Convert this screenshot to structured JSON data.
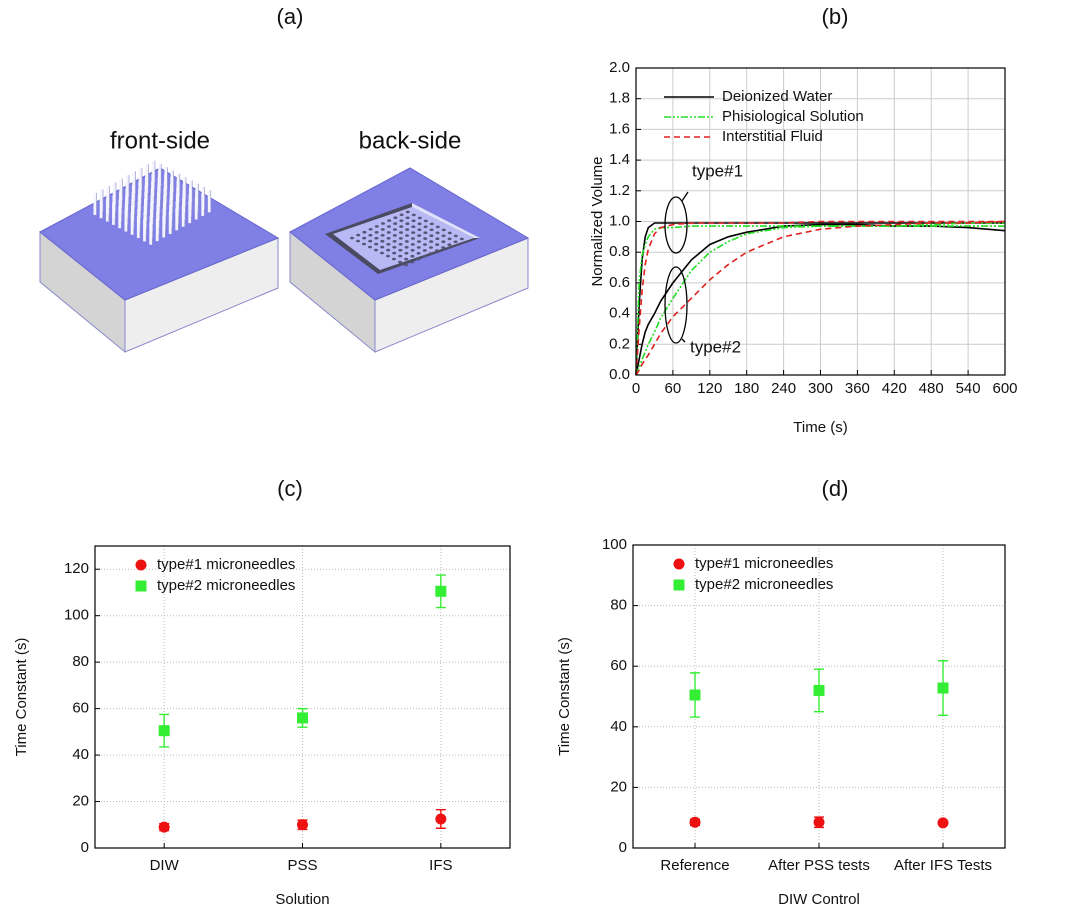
{
  "panel_a": {
    "label": "(a)",
    "front": "front-side",
    "back": "back-side"
  },
  "chart_data": [
    {
      "type": "line",
      "label": "(b)",
      "x_label": "Time (s)",
      "y_label": "Normalized Volume",
      "x": [
        0,
        5,
        10,
        15,
        20,
        30,
        40,
        60,
        90,
        120,
        150,
        180,
        240,
        300,
        360,
        420,
        480,
        540,
        600
      ],
      "xlim": [
        0,
        600
      ],
      "xticks": [
        0,
        60,
        120,
        180,
        240,
        300,
        360,
        420,
        480,
        540,
        600
      ],
      "ylim": [
        0,
        2
      ],
      "yticks": [
        {
          "value": 0,
          "label": "0.0"
        },
        {
          "value": 0.2,
          "label": "0.2"
        },
        {
          "value": 0.4,
          "label": "0.4"
        },
        {
          "value": 0.6,
          "label": "0.6"
        },
        {
          "value": 0.8,
          "label": "0.8"
        },
        {
          "value": 1,
          "label": "1.0"
        },
        {
          "value": 1.2,
          "label": "1.2"
        },
        {
          "value": 1.4,
          "label": "1.4"
        },
        {
          "value": 1.6,
          "label": "1.6"
        },
        {
          "value": 1.8,
          "label": "1.8"
        },
        {
          "value": 2,
          "label": "2.0"
        }
      ],
      "grid": true,
      "legend": "upper left",
      "series": [
        {
          "name": "Deionized Water",
          "color": "#000000",
          "dash": "solid",
          "values": [
            [
              0,
              0.45,
              0.75,
              0.9,
              0.96,
              0.99,
              0.99,
              0.99,
              0.99,
              0.99,
              0.99,
              0.99,
              0.99,
              0.99,
              0.99,
              0.99,
              0.99,
              0.99,
              0.99
            ],
            [
              0,
              0.1,
              0.2,
              0.28,
              0.33,
              0.4,
              0.48,
              0.6,
              0.75,
              0.85,
              0.9,
              0.93,
              0.97,
              0.98,
              0.98,
              0.97,
              0.97,
              0.96,
              0.94
            ]
          ]
        },
        {
          "name": "Phisiological Solution",
          "color": "#22dd22",
          "dash": "dashdotdot",
          "values": [
            [
              0,
              0.6,
              0.78,
              0.85,
              0.9,
              0.95,
              0.96,
              0.96,
              0.97,
              0.97,
              0.97,
              0.97,
              0.97,
              0.97,
              0.97,
              0.97,
              0.97,
              0.97,
              0.97
            ],
            [
              0,
              0.05,
              0.1,
              0.15,
              0.2,
              0.28,
              0.37,
              0.5,
              0.68,
              0.8,
              0.87,
              0.92,
              0.96,
              0.97,
              0.97,
              0.97,
              0.98,
              0.99,
              0.99
            ]
          ]
        },
        {
          "name": "Interstitial Fluid",
          "color": "#e02020",
          "dash": "dashed",
          "values": [
            [
              0,
              0.3,
              0.55,
              0.72,
              0.82,
              0.92,
              0.96,
              0.98,
              0.99,
              0.99,
              0.99,
              0.99,
              0.99,
              1,
              1,
              1,
              1,
              1,
              1
            ],
            [
              0,
              0.03,
              0.07,
              0.1,
              0.13,
              0.2,
              0.27,
              0.38,
              0.5,
              0.62,
              0.72,
              0.8,
              0.9,
              0.95,
              0.97,
              0.98,
              0.99,
              0.99,
              1
            ]
          ]
        }
      ],
      "annotations": [
        "type#1",
        "type#2"
      ]
    },
    {
      "type": "scatter",
      "label": "(c)",
      "x_label": "Solution",
      "y_label": "Time Constant (s)",
      "categories": [
        "DIW",
        "PSS",
        "IFS"
      ],
      "ylim": [
        0,
        130
      ],
      "yticks": [
        0,
        20,
        40,
        60,
        80,
        100,
        120
      ],
      "grid": true,
      "legend": "upper left",
      "series": [
        {
          "name": "type#1 microneedles",
          "color": "#ee1111",
          "marker": "circle",
          "values": [
            9,
            10,
            12.5
          ],
          "errors": [
            1.5,
            2,
            4
          ]
        },
        {
          "name": "type#2 microneedles",
          "color": "#33ee33",
          "marker": "square",
          "values": [
            50.5,
            56,
            110.5
          ],
          "errors": [
            7,
            4,
            7
          ]
        }
      ]
    },
    {
      "type": "scatter",
      "label": "(d)",
      "x_label": "DIW Control",
      "y_label": "Time Constant (s)",
      "categories": [
        "Reference",
        "After PSS tests",
        "After IFS Tests"
      ],
      "ylim": [
        0,
        100
      ],
      "yticks": [
        0,
        20,
        40,
        60,
        80,
        100
      ],
      "grid": true,
      "legend": "upper left",
      "series": [
        {
          "name": "type#1 microneedles",
          "color": "#ee1111",
          "marker": "circle",
          "values": [
            8.5,
            8.5,
            8.3
          ],
          "errors": [
            1,
            1.7,
            0.5
          ]
        },
        {
          "name": "type#2 microneedles",
          "color": "#33ee33",
          "marker": "square",
          "values": [
            50.5,
            52,
            52.8
          ],
          "errors": [
            7.3,
            7,
            9
          ]
        }
      ]
    }
  ]
}
